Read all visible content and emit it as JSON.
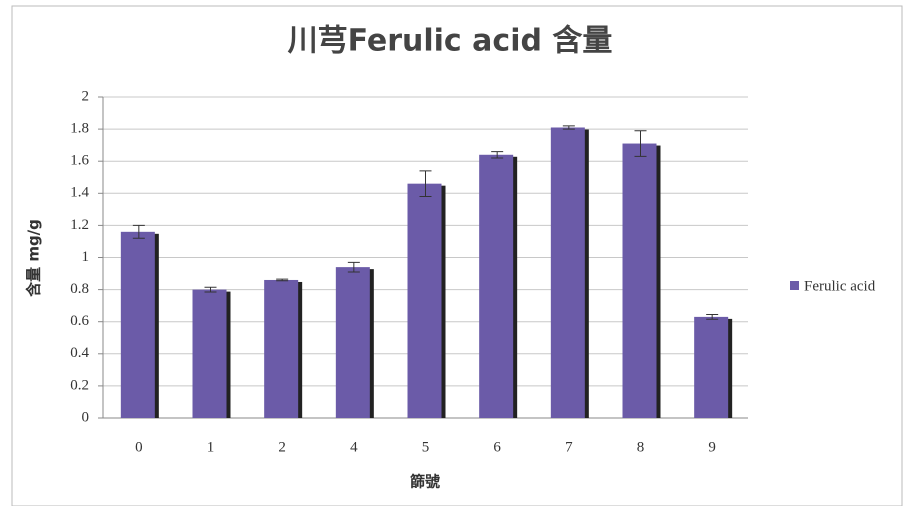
{
  "chart_data": {
    "type": "bar",
    "title": "川芎Ferulic acid 含量",
    "x_label": "篩號",
    "y_label": "含量 mg/g",
    "categories": [
      "0",
      "1",
      "2",
      "4",
      "5",
      "6",
      "7",
      "8",
      "9"
    ],
    "series": [
      {
        "name": "Ferulic acid",
        "color": "#6b5ba8",
        "values": [
          1.16,
          0.8,
          0.86,
          0.94,
          1.46,
          1.64,
          1.81,
          1.71,
          0.63
        ],
        "errors": [
          0.04,
          0.015,
          0.005,
          0.03,
          0.08,
          0.02,
          0.01,
          0.08,
          0.015
        ]
      }
    ],
    "ylim": [
      0,
      2
    ],
    "yticks": [
      0,
      0.2,
      0.4,
      0.6,
      0.8,
      1,
      1.2,
      1.4,
      1.6,
      1.8,
      2
    ],
    "grid": true,
    "legend": "right"
  }
}
